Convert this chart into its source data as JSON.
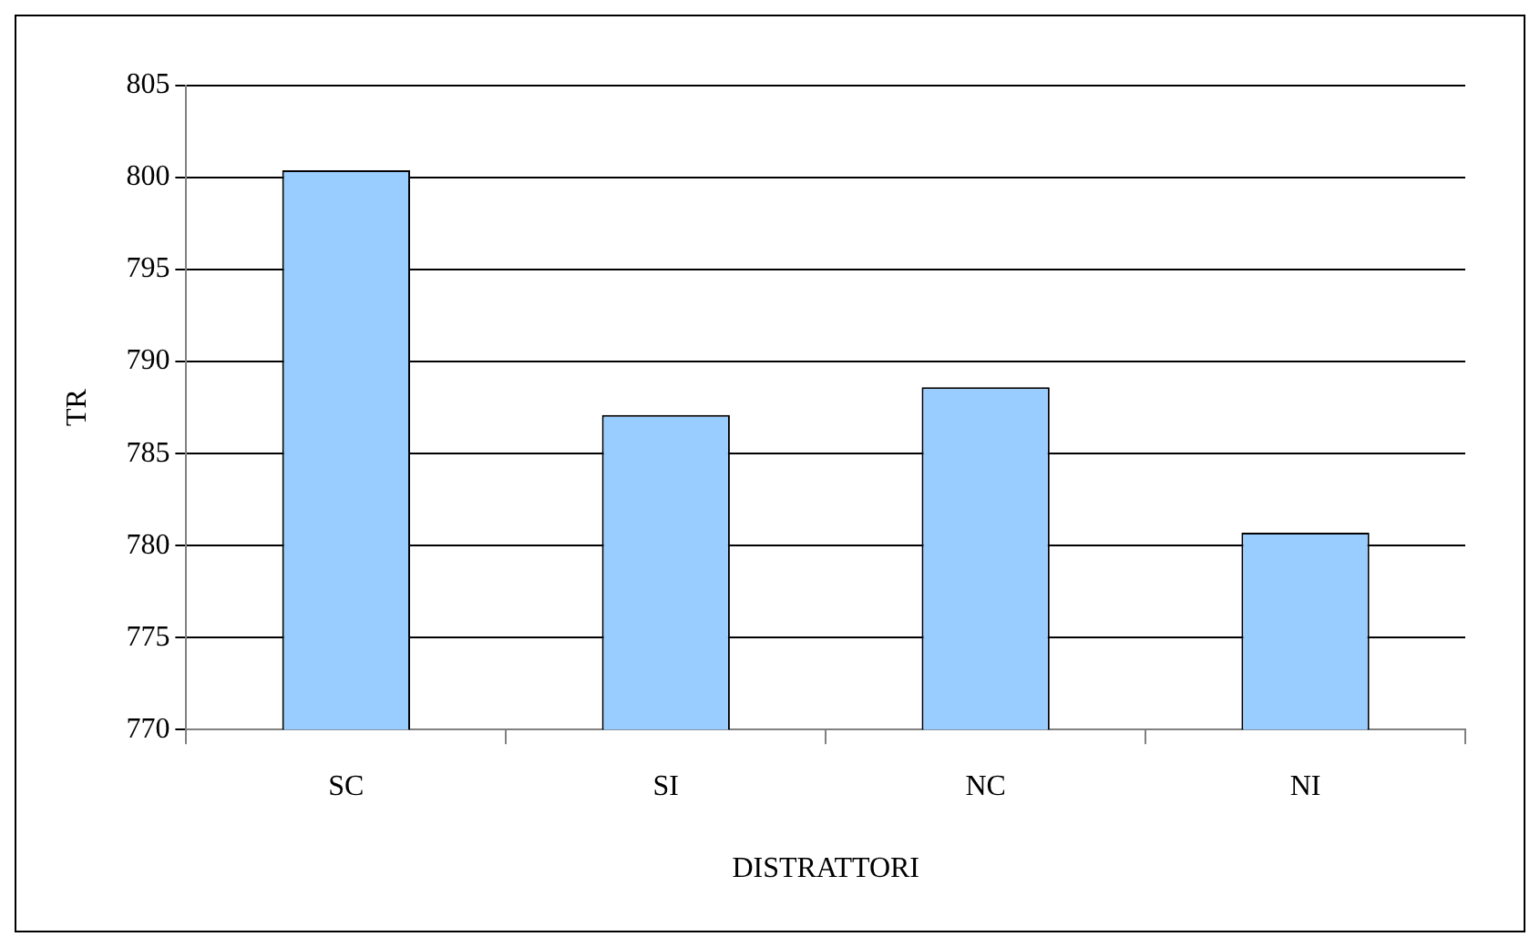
{
  "chart_data": {
    "type": "bar",
    "xlabel": "DISTRATTORI",
    "ylabel": "TR",
    "categories": [
      "SC",
      "SI",
      "NC",
      "NI"
    ],
    "values": [
      800.4,
      787.1,
      788.6,
      780.7
    ],
    "color": "#99ccff",
    "ylim": [
      770,
      805
    ],
    "yticks": [
      770,
      775,
      780,
      785,
      790,
      795,
      800,
      805
    ],
    "grid": "y"
  }
}
